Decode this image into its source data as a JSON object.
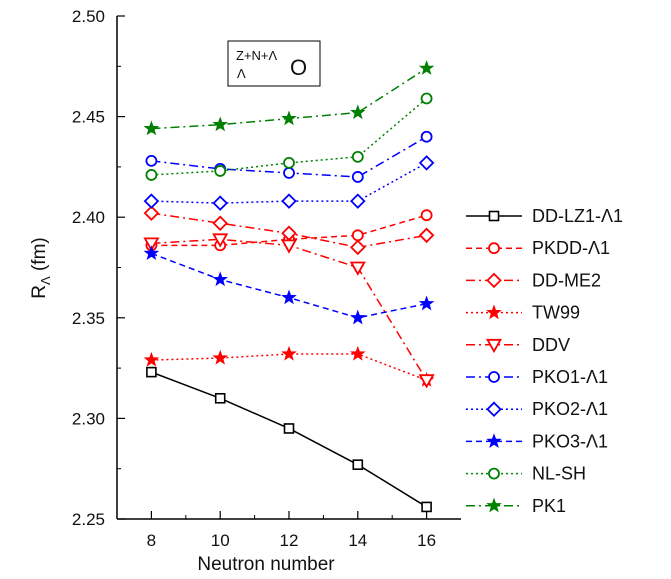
{
  "chart_data": {
    "type": "line",
    "x": [
      8,
      10,
      12,
      14,
      16
    ],
    "xlabel": "Neutron number",
    "ylabel": {
      "base": "R",
      "sub": "Λ",
      "unit": "(fm)"
    },
    "xlim": [
      7,
      17
    ],
    "ylim": [
      2.25,
      2.5
    ],
    "xticks": [
      8,
      10,
      12,
      14,
      16
    ],
    "yticks": [
      "2.25",
      "2.30",
      "2.35",
      "2.40",
      "2.45",
      "2.50"
    ],
    "annotation": {
      "pre_sup": "Z+N+Λ",
      "pre_sub": "Λ",
      "symbol": "O"
    },
    "legend_position": "right",
    "series": [
      {
        "name": "DD-LZ1-Λ1",
        "color": "#000000",
        "dash": "solid",
        "marker": "square",
        "values": [
          2.323,
          2.31,
          2.295,
          2.277,
          2.256
        ]
      },
      {
        "name": "PKDD-Λ1",
        "color": "#ff0000",
        "dash": "dash",
        "marker": "circle",
        "values": [
          2.386,
          2.386,
          2.389,
          2.391,
          2.401
        ]
      },
      {
        "name": "DD-ME2",
        "color": "#ff0000",
        "dash": "dashdot",
        "marker": "diamond",
        "values": [
          2.402,
          2.397,
          2.392,
          2.385,
          2.391
        ]
      },
      {
        "name": "TW99",
        "color": "#ff0000",
        "dash": "dot",
        "marker": "star",
        "values": [
          2.329,
          2.33,
          2.332,
          2.332,
          2.319
        ]
      },
      {
        "name": "DDV",
        "color": "#ff0000",
        "dash": "dashdot",
        "marker": "triangle",
        "values": [
          2.387,
          2.389,
          2.386,
          2.375,
          2.319
        ]
      },
      {
        "name": "PKO1-Λ1",
        "color": "#0000ff",
        "dash": "dashdot",
        "marker": "circle",
        "values": [
          2.428,
          2.424,
          2.422,
          2.42,
          2.44
        ]
      },
      {
        "name": "PKO2-Λ1",
        "color": "#0000ff",
        "dash": "dot",
        "marker": "diamond",
        "values": [
          2.408,
          2.407,
          2.408,
          2.408,
          2.427
        ]
      },
      {
        "name": "PKO3-Λ1",
        "color": "#0000ff",
        "dash": "dash",
        "marker": "star",
        "values": [
          2.382,
          2.369,
          2.36,
          2.35,
          2.357
        ]
      },
      {
        "name": "NL-SH",
        "color": "#008000",
        "dash": "dot",
        "marker": "circle",
        "values": [
          2.421,
          2.423,
          2.427,
          2.43,
          2.459
        ]
      },
      {
        "name": "PK1",
        "color": "#008000",
        "dash": "dashdot",
        "marker": "star",
        "values": [
          2.444,
          2.446,
          2.449,
          2.452,
          2.474
        ]
      }
    ]
  }
}
